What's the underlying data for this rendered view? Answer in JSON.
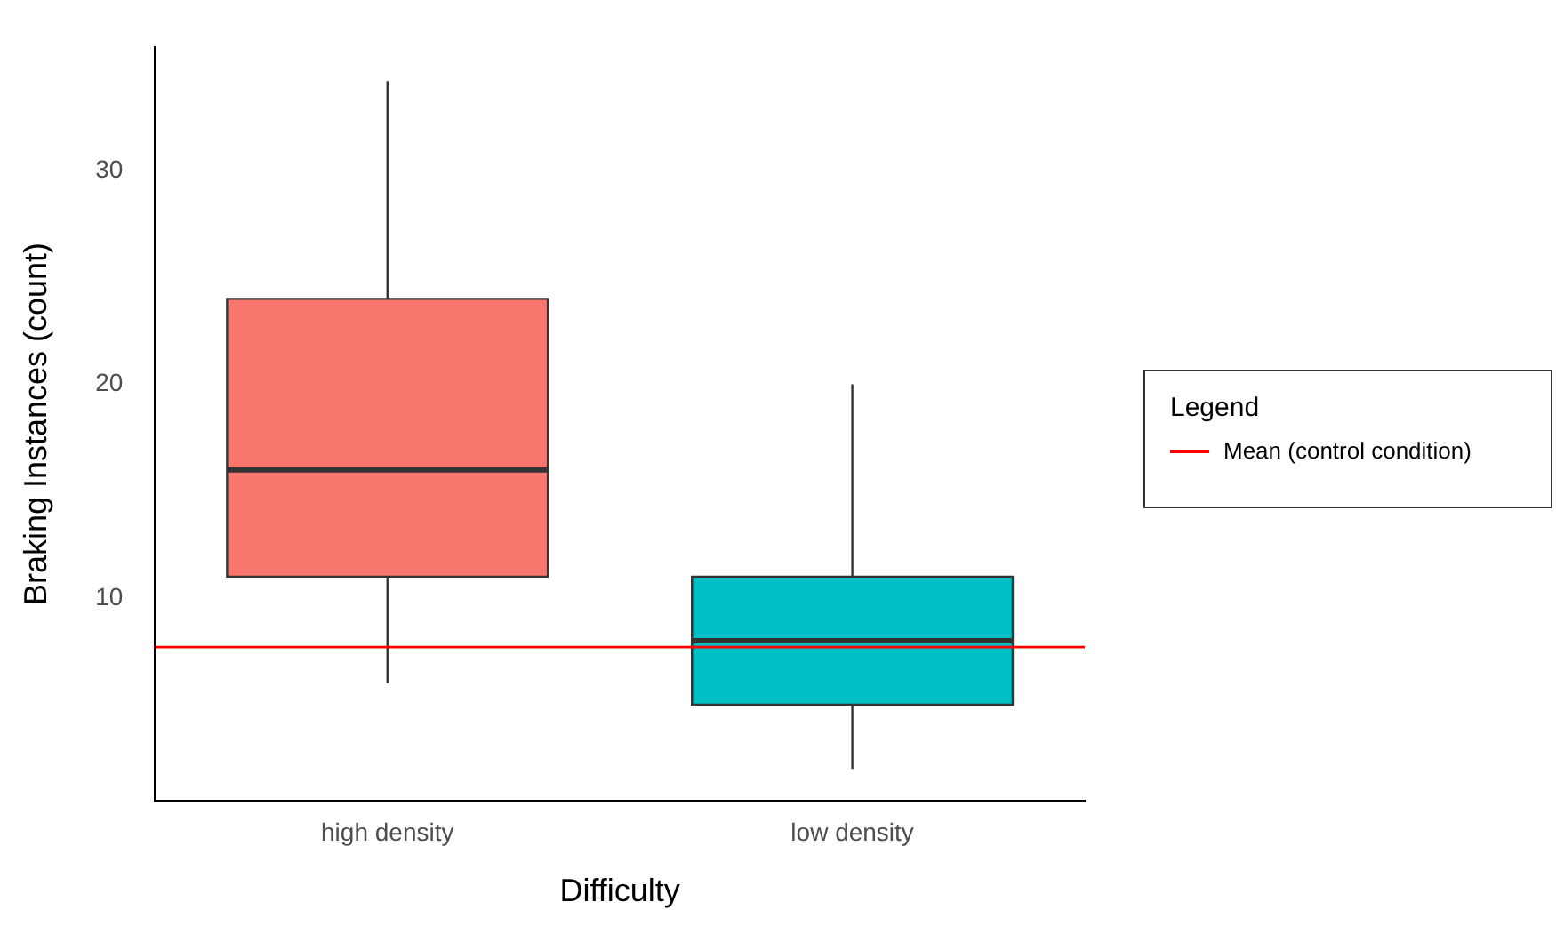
{
  "chart_data": {
    "type": "box",
    "xlabel": "Difficulty",
    "ylabel": "Braking Instances (count)",
    "categories": [
      "high density",
      "low density"
    ],
    "colors": [
      "#f8766d",
      "#00bfc4"
    ],
    "boxes": [
      {
        "low": 6,
        "q1": 11,
        "median": 16,
        "q3": 24,
        "high": 34.2
      },
      {
        "low": 2,
        "q1": 5,
        "median": 8,
        "q3": 11,
        "high": 20
      }
    ],
    "ylim": [
      0.5,
      35.8
    ],
    "yticks": [
      10,
      20,
      30
    ],
    "grid": false,
    "ref_lines": [
      {
        "axis": "y",
        "value": 7.7,
        "label": "Mean (control condition)",
        "color": "#ff0000"
      }
    ],
    "legend": "right",
    "legend_title": "Legend"
  }
}
